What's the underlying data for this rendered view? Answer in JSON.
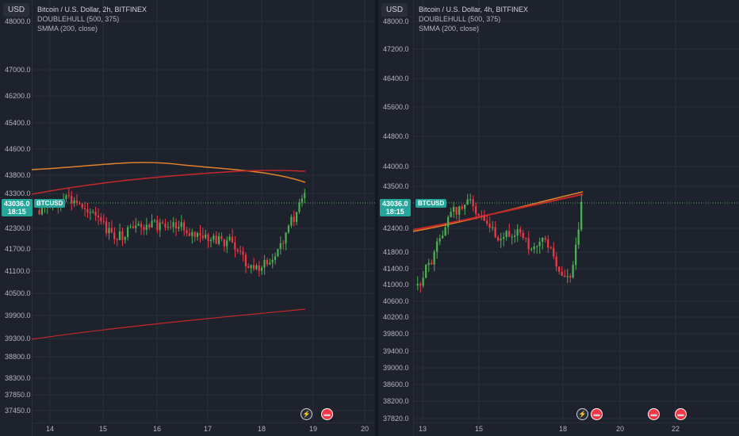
{
  "colors": {
    "background": "#1e222d",
    "up": "#4caf50",
    "down": "#f23645",
    "hull_orange": "#e0822b",
    "hull_red": "#c62828",
    "smma": "#c62828",
    "last_price_tag": "#4caf50"
  },
  "left_chart": {
    "currency_button": "USD",
    "title": "Bitcoin / U.S. Dollar, 2h, BITFINEX",
    "indicator1": "DOUBLEHULL (500, 375)",
    "indicator2": "SMMA (200, close)",
    "y_ticks": [
      "48000.0",
      "47000.0",
      "46200.0",
      "45400.0",
      "44600.0",
      "43800.0",
      "43300.0",
      "42300.0",
      "41700.0",
      "41100.0",
      "40500.0",
      "39900.0",
      "39300.0",
      "38800.0",
      "38300.0",
      "37850.0",
      "37450.0"
    ],
    "x_ticks": [
      "14",
      "15",
      "16",
      "17",
      "18",
      "19",
      "20"
    ],
    "last_price": "43036.0",
    "countdown": "18:15",
    "symbol_tag": "BTCUSD",
    "event_icon": "lightning-icon",
    "flag_icon": "us-flag-icon"
  },
  "right_chart": {
    "currency_button": "USD",
    "title": "Bitcoin / U.S. Dollar, 4h, BITFINEX",
    "indicator1": "DOUBLEHULL (500, 375)",
    "indicator2": "SMMA (200, close)",
    "y_ticks": [
      "48000.0",
      "47200.0",
      "46400.0",
      "45600.0",
      "44800.0",
      "44000.0",
      "43500.0",
      "42400.0",
      "41800.0",
      "41400.0",
      "41000.0",
      "40600.0",
      "40200.0",
      "39800.0",
      "39400.0",
      "39000.0",
      "38600.0",
      "38200.0",
      "37820.0"
    ],
    "x_ticks": [
      "13",
      "15",
      "18",
      "20",
      "22"
    ],
    "last_price": "43036.0",
    "countdown": "18:15",
    "symbol_tag": "BTCUSD",
    "event_icon": "lightning-icon",
    "flag_icon": "us-flag-icon"
  }
}
